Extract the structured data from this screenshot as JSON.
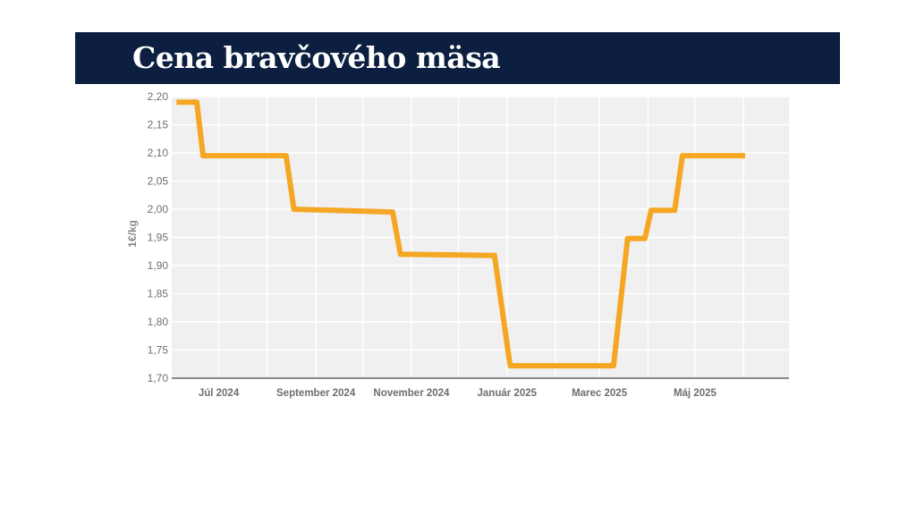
{
  "header": {
    "title": "Cena bravčového mäsa"
  },
  "colors": {
    "header_bg": "#0c1f40",
    "line": "#f5a623",
    "plot_bg": "#f0f0f0",
    "grid": "#ffffff",
    "axis": "#666666"
  },
  "chart_data": {
    "type": "line",
    "title": "Cena bravčového mäsa",
    "ylabel": "1€/kg",
    "xlabel": "",
    "xlim": [
      "2024-06-01",
      "2025-06-30"
    ],
    "ylim": [
      1.7,
      2.2
    ],
    "ytick_values": [
      1.7,
      1.75,
      1.8,
      1.85,
      1.9,
      1.95,
      2.0,
      2.05,
      2.1,
      2.15,
      2.2
    ],
    "ytick_labels": [
      "1,70",
      "1,75",
      "1,80",
      "1,85",
      "1,90",
      "1,95",
      "2,00",
      "2,05",
      "2,10",
      "2,15",
      "2,20"
    ],
    "xticks": [
      {
        "date": "2024-07-01",
        "label": "Júl 2024"
      },
      {
        "date": "2024-09-01",
        "label": "September 2024"
      },
      {
        "date": "2024-11-01",
        "label": "November 2024"
      },
      {
        "date": "2025-01-01",
        "label": "Január 2025"
      },
      {
        "date": "2025-03-01",
        "label": "Marec 2025"
      },
      {
        "date": "2025-05-01",
        "label": "Máj 2025"
      }
    ],
    "grid": true,
    "series": [
      {
        "points": [
          {
            "x": "2024-06-04",
            "y": 2.19
          },
          {
            "x": "2024-06-17",
            "y": 2.19
          },
          {
            "x": "2024-06-21",
            "y": 2.095
          },
          {
            "x": "2024-08-13",
            "y": 2.095
          },
          {
            "x": "2024-08-18",
            "y": 2.0
          },
          {
            "x": "2024-10-20",
            "y": 1.995
          },
          {
            "x": "2024-10-25",
            "y": 1.92
          },
          {
            "x": "2024-12-24",
            "y": 1.918
          },
          {
            "x": "2025-01-03",
            "y": 1.722
          },
          {
            "x": "2025-03-10",
            "y": 1.722
          },
          {
            "x": "2025-03-19",
            "y": 1.948
          },
          {
            "x": "2025-03-30",
            "y": 1.948
          },
          {
            "x": "2025-04-03",
            "y": 1.998
          },
          {
            "x": "2025-04-18",
            "y": 1.998
          },
          {
            "x": "2025-04-23",
            "y": 2.095
          },
          {
            "x": "2025-06-02",
            "y": 2.095
          }
        ]
      }
    ]
  }
}
